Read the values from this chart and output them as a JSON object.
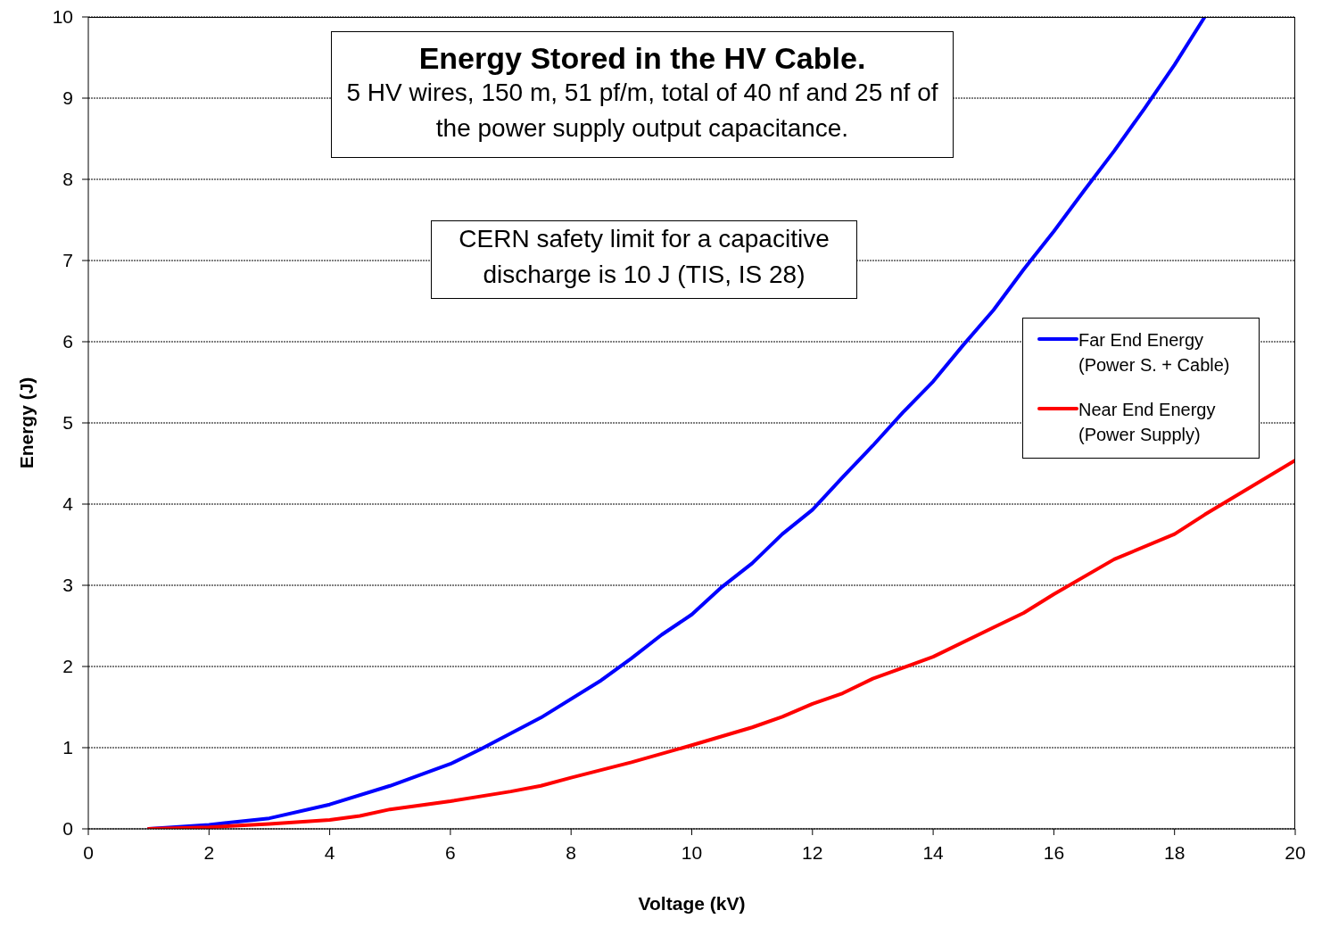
{
  "chart_data": {
    "type": "line",
    "title": "Energy Stored in the HV Cable.",
    "subtitle": "5 HV wires, 150 m, 51 pf/m, total of 40 nf and 25 nf of the power supply output capacitance.",
    "xlabel": "Voltage (kV)",
    "ylabel": "Energy (J)",
    "annotations": [
      "CERN safety limit for a capacitive discharge is 10 J (TIS, IS 28)"
    ],
    "xlim": [
      0,
      20
    ],
    "xticks": [
      0,
      2,
      4,
      6,
      8,
      10,
      12,
      14,
      16,
      18,
      20
    ],
    "ylim": [
      0,
      10
    ],
    "yticks": [
      0,
      1,
      2,
      3,
      4,
      5,
      6,
      7,
      8,
      9,
      10
    ],
    "grid": "y",
    "legend": "right",
    "marker": "none",
    "line_style": "solid",
    "series": [
      {
        "name": "Far End Energy (Power S. + Cable)",
        "color": "#0000ff",
        "x": [
          1,
          2,
          3,
          4,
          5,
          6,
          6.5,
          7.5,
          8.5,
          9,
          9.5,
          10,
          10.5,
          11,
          11.5,
          12,
          12.5,
          13,
          13.5,
          14,
          14.5,
          15,
          15.5,
          16,
          16.5,
          17,
          17.5,
          18,
          18.5
        ],
        "values": [
          0,
          0.05,
          0.13,
          0.3,
          0.53,
          0.8,
          0.98,
          1.37,
          1.83,
          2.1,
          2.39,
          2.64,
          2.98,
          3.27,
          3.63,
          3.93,
          4.33,
          4.72,
          5.13,
          5.51,
          5.96,
          6.39,
          6.89,
          7.36,
          7.86,
          8.35,
          8.87,
          9.41,
          10
        ]
      },
      {
        "name": "Near End Energy (Power Supply)",
        "color": "#ff0000",
        "x": [
          1,
          2,
          3,
          4,
          4.5,
          5,
          6,
          7,
          7.5,
          8,
          9,
          10,
          11,
          11.5,
          12,
          12.5,
          13,
          14,
          15,
          15.5,
          16,
          17,
          18,
          18.5,
          20
        ],
        "values": [
          0,
          0.02,
          0.06,
          0.11,
          0.16,
          0.24,
          0.34,
          0.46,
          0.53,
          0.63,
          0.82,
          1.03,
          1.25,
          1.38,
          1.54,
          1.67,
          1.85,
          2.12,
          2.48,
          2.66,
          2.89,
          3.32,
          3.63,
          3.87,
          4.54
        ]
      }
    ]
  }
}
